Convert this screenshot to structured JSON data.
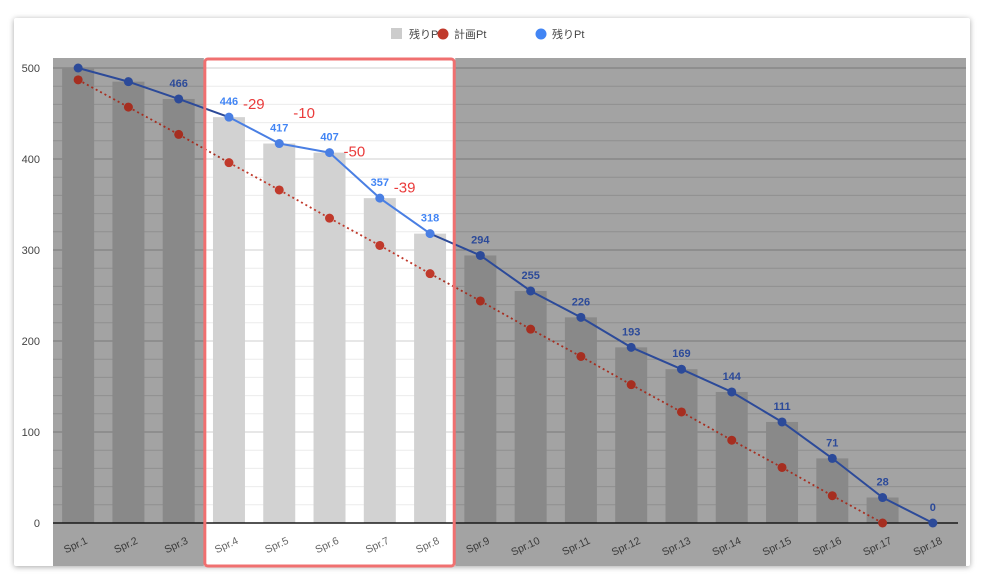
{
  "chart_data": {
    "type": "bar",
    "categories": [
      "Spr.1",
      "Spr.2",
      "Spr.3",
      "Spr.4",
      "Spr.5",
      "Spr.6",
      "Spr.7",
      "Spr.8",
      "Spr.9",
      "Spr.10",
      "Spr.11",
      "Spr.12",
      "Spr.13",
      "Spr.14",
      "Spr.15",
      "Spr.16",
      "Spr.17",
      "Spr.18"
    ],
    "ylim": [
      0,
      500
    ],
    "yticks": [
      0,
      100,
      200,
      300,
      400,
      500
    ],
    "grid": true,
    "legend_position": "top",
    "legend": [
      {
        "name": "残りPt",
        "shape": "square",
        "color": "#cccccc"
      },
      {
        "name": "計画Pt",
        "shape": "circle",
        "color": "#c0392b"
      },
      {
        "name": "残りPt",
        "shape": "circle",
        "color": "#4285f4"
      }
    ],
    "series": [
      {
        "name": "残りPt",
        "kind": "bar",
        "values": [
          500,
          485,
          466,
          446,
          417,
          407,
          357,
          318,
          294,
          255,
          226,
          193,
          169,
          144,
          111,
          71,
          28,
          0
        ]
      },
      {
        "name": "計画Pt",
        "kind": "line-dotted",
        "values": [
          487,
          457,
          427,
          396,
          366,
          335,
          305,
          274,
          244,
          213,
          183,
          152,
          122,
          91,
          61,
          30,
          0,
          null
        ]
      },
      {
        "name": "残りPt",
        "kind": "line",
        "values": [
          500,
          485,
          466,
          446,
          417,
          407,
          357,
          318,
          294,
          255,
          226,
          193,
          169,
          144,
          111,
          71,
          28,
          0
        ],
        "data_labels": [
          null,
          null,
          "466",
          "446",
          "417",
          "407",
          "357",
          "318",
          "294",
          "255",
          "226",
          "193",
          "169",
          "144",
          "111",
          "71",
          "28",
          "0"
        ]
      }
    ],
    "highlight": {
      "from": "Spr.4",
      "to": "Spr.8"
    },
    "annotations": [
      {
        "text": "-29",
        "category": "Spr.4",
        "y": 455
      },
      {
        "text": "-10",
        "category": "Spr.5",
        "y": 445
      },
      {
        "text": "-50",
        "category": "Spr.6",
        "y": 403
      },
      {
        "text": "-39",
        "category": "Spr.7",
        "y": 363
      }
    ],
    "colors": {
      "plot_dim": "#a3a3a3",
      "bar_dim": "#898989",
      "bar_highlight": "#d2d2d2",
      "line_dim": "#2c4a99",
      "line_highlight": "#4a7fe3",
      "plan_dim": "#a62e20",
      "plan_highlight": "#c0392b",
      "label_dim": "#2c4a99",
      "label_highlight": "#4285f4",
      "annotation": "#ea3b3b",
      "highlight_border": "#f07070"
    }
  }
}
